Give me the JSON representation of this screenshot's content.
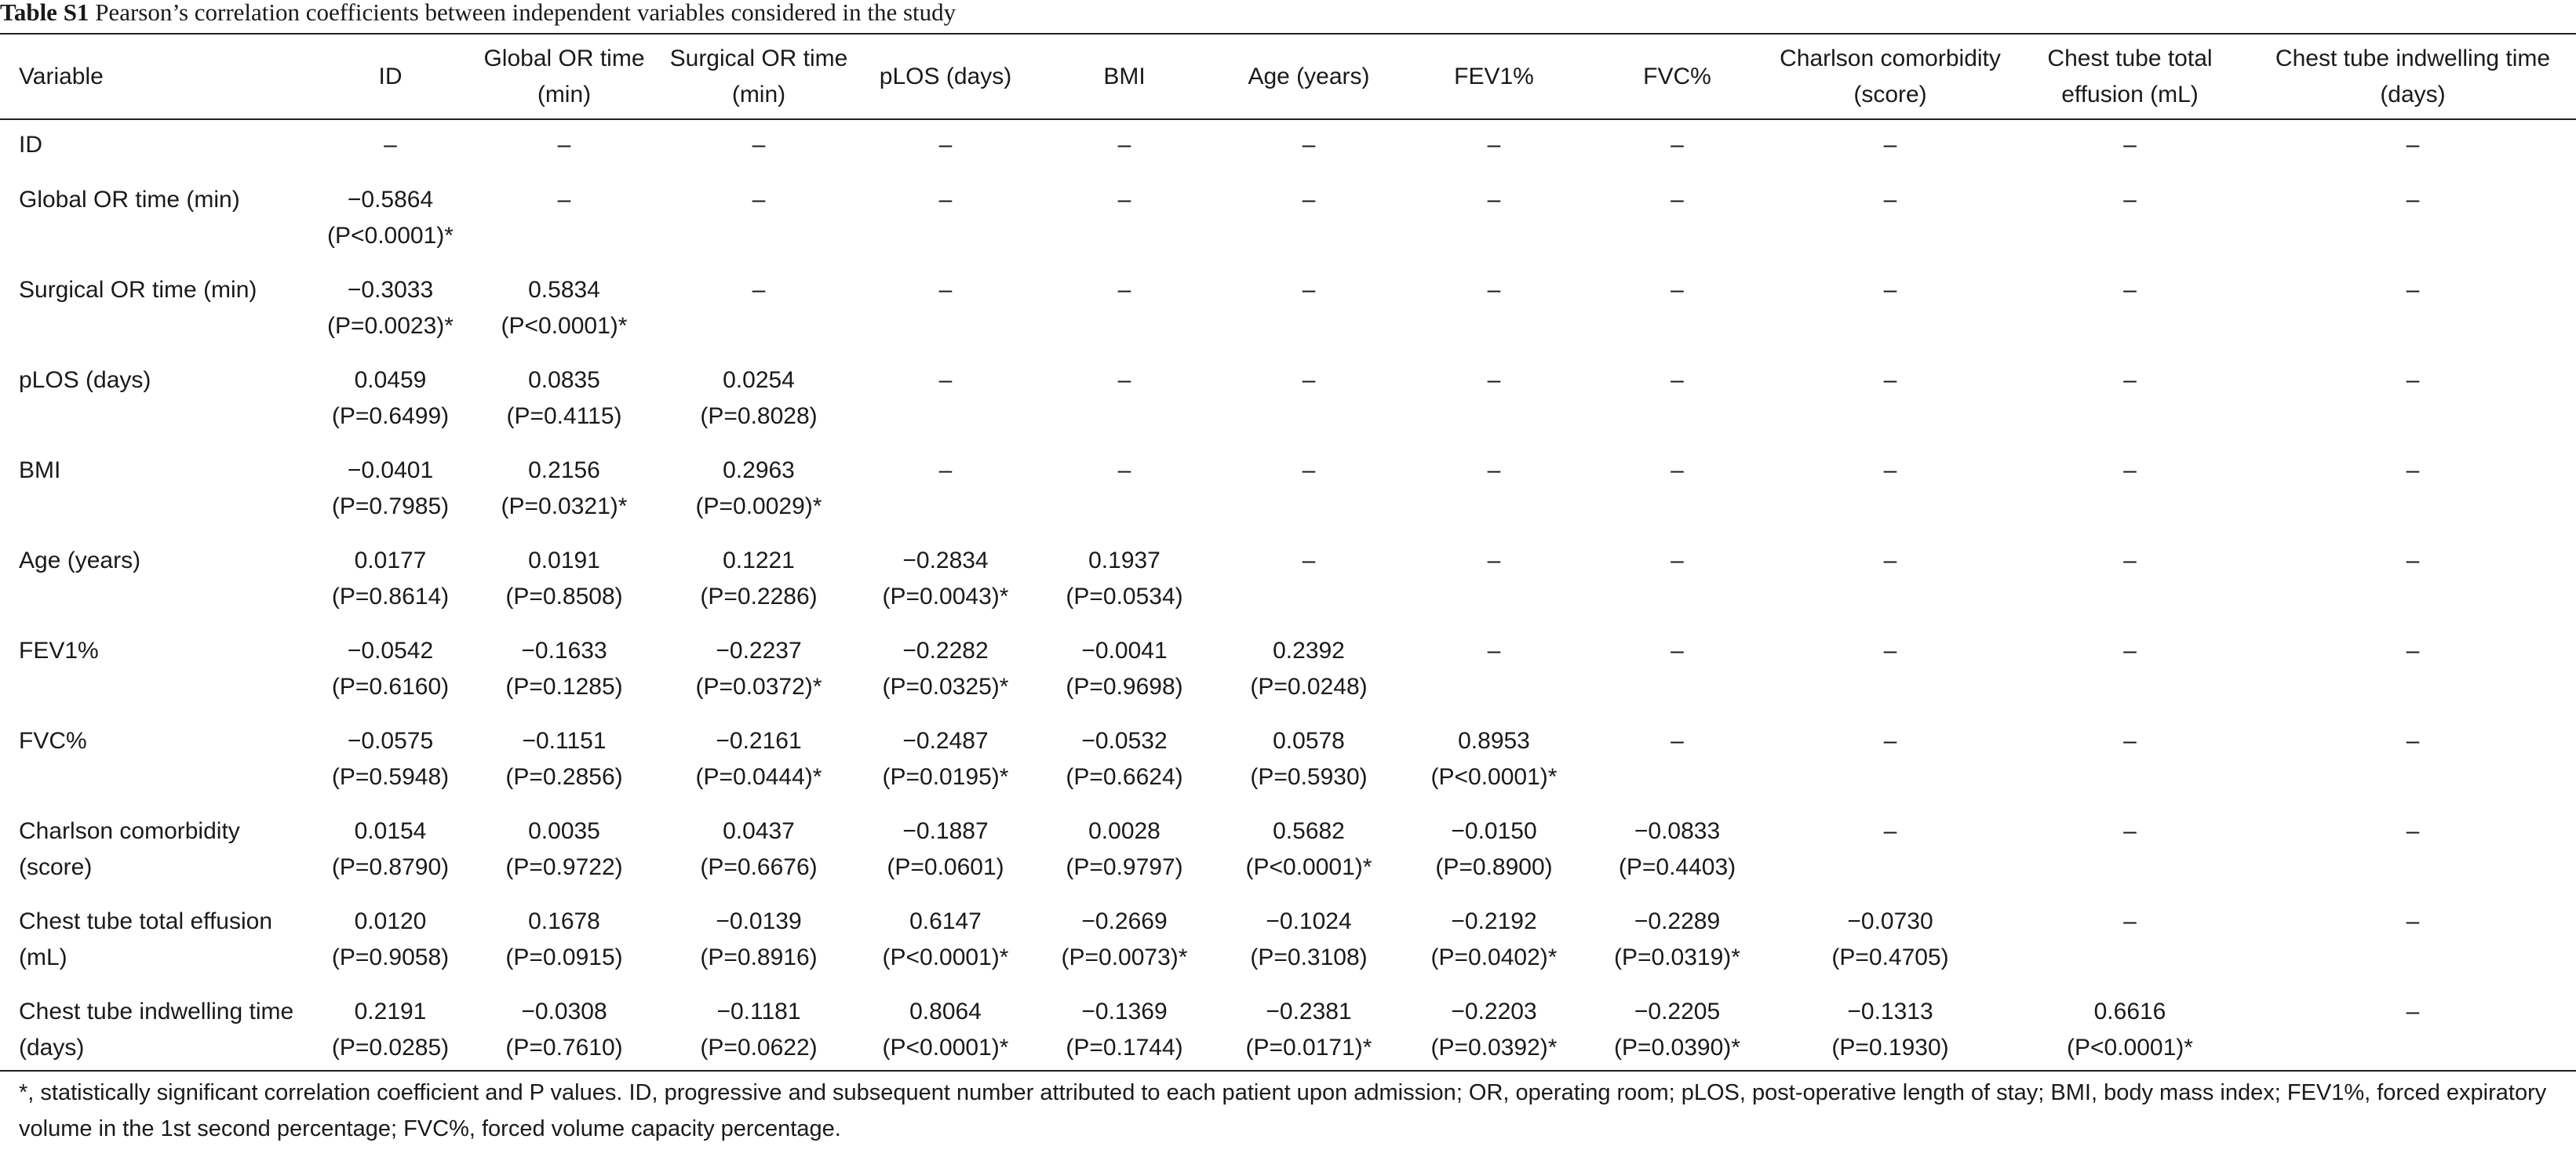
{
  "caption": {
    "label": "Table S1",
    "text": "Pearson’s correlation coefficients between independent variables considered in the study"
  },
  "columns": [
    "Variable",
    "ID",
    "Global OR time (min)",
    "Surgical OR time (min)",
    "pLOS (days)",
    "BMI",
    "Age (years)",
    "FEV1%",
    "FVC%",
    "Charlson comorbidity (score)",
    "Chest tube total effusion (mL)",
    "Chest tube indwelling time (days)"
  ],
  "rows": [
    {
      "label": "ID",
      "cells": [
        {
          "v": "–"
        },
        {
          "v": "–"
        },
        {
          "v": "–"
        },
        {
          "v": "–"
        },
        {
          "v": "–"
        },
        {
          "v": "–"
        },
        {
          "v": "–"
        },
        {
          "v": "–"
        },
        {
          "v": "–"
        },
        {
          "v": "–"
        },
        {
          "v": "–"
        }
      ]
    },
    {
      "label": "Global OR time (min)",
      "cells": [
        {
          "v": "−0.5864",
          "p": "(P<0.0001)*"
        },
        {
          "v": "–"
        },
        {
          "v": "–"
        },
        {
          "v": "–"
        },
        {
          "v": "–"
        },
        {
          "v": "–"
        },
        {
          "v": "–"
        },
        {
          "v": "–"
        },
        {
          "v": "–"
        },
        {
          "v": "–"
        },
        {
          "v": "–"
        }
      ]
    },
    {
      "label": "Surgical OR time (min)",
      "cells": [
        {
          "v": "−0.3033",
          "p": "(P=0.0023)*"
        },
        {
          "v": "0.5834",
          "p": "(P<0.0001)*"
        },
        {
          "v": "–"
        },
        {
          "v": "–"
        },
        {
          "v": "–"
        },
        {
          "v": "–"
        },
        {
          "v": "–"
        },
        {
          "v": "–"
        },
        {
          "v": "–"
        },
        {
          "v": "–"
        },
        {
          "v": "–"
        }
      ]
    },
    {
      "label": "pLOS (days)",
      "cells": [
        {
          "v": "0.0459",
          "p": "(P=0.6499)"
        },
        {
          "v": "0.0835",
          "p": "(P=0.4115)"
        },
        {
          "v": "0.0254",
          "p": "(P=0.8028)"
        },
        {
          "v": "–"
        },
        {
          "v": "–"
        },
        {
          "v": "–"
        },
        {
          "v": "–"
        },
        {
          "v": "–"
        },
        {
          "v": "–"
        },
        {
          "v": "–"
        },
        {
          "v": "–"
        }
      ]
    },
    {
      "label": "BMI",
      "cells": [
        {
          "v": "−0.0401",
          "p": "(P=0.7985)"
        },
        {
          "v": "0.2156",
          "p": "(P=0.0321)*"
        },
        {
          "v": "0.2963",
          "p": "(P=0.0029)*"
        },
        {
          "v": "–"
        },
        {
          "v": "–"
        },
        {
          "v": "–"
        },
        {
          "v": "–"
        },
        {
          "v": "–"
        },
        {
          "v": "–"
        },
        {
          "v": "–"
        },
        {
          "v": "–"
        }
      ]
    },
    {
      "label": "Age (years)",
      "cells": [
        {
          "v": "0.0177",
          "p": "(P=0.8614)"
        },
        {
          "v": "0.0191",
          "p": "(P=0.8508)"
        },
        {
          "v": "0.1221",
          "p": "(P=0.2286)"
        },
        {
          "v": "−0.2834",
          "p": "(P=0.0043)*"
        },
        {
          "v": "0.1937",
          "p": "(P=0.0534)"
        },
        {
          "v": "–"
        },
        {
          "v": "–"
        },
        {
          "v": "–"
        },
        {
          "v": "–"
        },
        {
          "v": "–"
        },
        {
          "v": "–"
        }
      ]
    },
    {
      "label": "FEV1%",
      "cells": [
        {
          "v": "−0.0542",
          "p": "(P=0.6160)"
        },
        {
          "v": "−0.1633",
          "p": "(P=0.1285)"
        },
        {
          "v": "−0.2237",
          "p": "(P=0.0372)*"
        },
        {
          "v": "−0.2282",
          "p": "(P=0.0325)*"
        },
        {
          "v": "−0.0041",
          "p": "(P=0.9698)"
        },
        {
          "v": "0.2392",
          "p": "(P=0.0248)"
        },
        {
          "v": "–"
        },
        {
          "v": "–"
        },
        {
          "v": "–"
        },
        {
          "v": "–"
        },
        {
          "v": "–"
        }
      ]
    },
    {
      "label": "FVC%",
      "cells": [
        {
          "v": "−0.0575",
          "p": "(P=0.5948)"
        },
        {
          "v": "−0.1151",
          "p": "(P=0.2856)"
        },
        {
          "v": "−0.2161",
          "p": "(P=0.0444)*"
        },
        {
          "v": "−0.2487",
          "p": "(P=0.0195)*"
        },
        {
          "v": "−0.0532",
          "p": "(P=0.6624)"
        },
        {
          "v": "0.0578",
          "p": "(P=0.5930)"
        },
        {
          "v": "0.8953",
          "p": "(P<0.0001)*"
        },
        {
          "v": "–"
        },
        {
          "v": "–"
        },
        {
          "v": "–"
        },
        {
          "v": "–"
        }
      ]
    },
    {
      "label": "Charlson comorbidity (score)",
      "cells": [
        {
          "v": "0.0154",
          "p": "(P=0.8790)"
        },
        {
          "v": "0.0035",
          "p": "(P=0.9722)"
        },
        {
          "v": "0.0437",
          "p": "(P=0.6676)"
        },
        {
          "v": "−0.1887",
          "p": "(P=0.0601)"
        },
        {
          "v": "0.0028",
          "p": "(P=0.9797)"
        },
        {
          "v": "0.5682",
          "p": "(P<0.0001)*"
        },
        {
          "v": "−0.0150",
          "p": "(P=0.8900)"
        },
        {
          "v": "−0.0833",
          "p": "(P=0.4403)"
        },
        {
          "v": "–"
        },
        {
          "v": "–"
        },
        {
          "v": "–"
        }
      ]
    },
    {
      "label": "Chest tube total effusion (mL)",
      "cells": [
        {
          "v": "0.0120",
          "p": "(P=0.9058)"
        },
        {
          "v": "0.1678",
          "p": "(P=0.0915)"
        },
        {
          "v": "−0.0139",
          "p": "(P=0.8916)"
        },
        {
          "v": "0.6147",
          "p": "(P<0.0001)*"
        },
        {
          "v": "−0.2669",
          "p": "(P=0.0073)*"
        },
        {
          "v": "−0.1024",
          "p": "(P=0.3108)"
        },
        {
          "v": "−0.2192",
          "p": "(P=0.0402)*"
        },
        {
          "v": "−0.2289",
          "p": "(P=0.0319)*"
        },
        {
          "v": "−0.0730",
          "p": "(P=0.4705)"
        },
        {
          "v": "–"
        },
        {
          "v": "–"
        }
      ]
    },
    {
      "label": "Chest tube indwelling time (days)",
      "cells": [
        {
          "v": "0.2191",
          "p": "(P=0.0285)"
        },
        {
          "v": "−0.0308",
          "p": "(P=0.7610)"
        },
        {
          "v": "−0.1181",
          "p": "(P=0.0622)"
        },
        {
          "v": "0.8064",
          "p": "(P<0.0001)*"
        },
        {
          "v": "−0.1369",
          "p": "(P=0.1744)"
        },
        {
          "v": "−0.2381",
          "p": "(P=0.0171)*"
        },
        {
          "v": "−0.2203",
          "p": "(P=0.0392)*"
        },
        {
          "v": "−0.2205",
          "p": "(P=0.0390)*"
        },
        {
          "v": "−0.1313",
          "p": "(P=0.1930)"
        },
        {
          "v": "0.6616",
          "p": "(P<0.0001)*"
        },
        {
          "v": "–"
        }
      ]
    }
  ],
  "footnote": "*, statistically significant correlation coefficient and P values. ID, progressive and subsequent number attributed to each patient upon admission; OR, operating room; pLOS, post-operative length of stay; BMI, body mass index; FEV1%, forced expiratory volume in the 1st second percentage; FVC%, forced volume capacity percentage."
}
